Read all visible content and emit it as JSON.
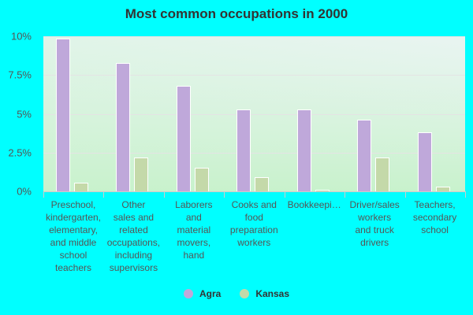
{
  "chart_data": {
    "type": "bar",
    "title": "Most common occupations in 2000",
    "xlabel": "",
    "ylabel": "",
    "ylim": [
      0,
      10
    ],
    "yticks": [
      "0%",
      "2.5%",
      "5%",
      "7.5%",
      "10%"
    ],
    "grid": true,
    "legend_position": "bottom",
    "categories": [
      "Preschool, kindergarten, elementary, and middle school teachers",
      "Other sales and related occupations, including supervisors",
      "Laborers and material movers, hand",
      "Cooks and food preparation workers",
      "Bookkeepi...",
      "Driver/sales workers and truck drivers",
      "Teachers, secondary school"
    ],
    "series": [
      {
        "name": "Agra",
        "color": "#bfa8da",
        "values": [
          9.85,
          8.3,
          6.8,
          5.3,
          5.3,
          4.6,
          3.8
        ]
      },
      {
        "name": "Kansas",
        "color": "#c4d9a9",
        "values": [
          0.55,
          2.2,
          1.5,
          0.9,
          0.1,
          2.2,
          0.3
        ]
      }
    ]
  },
  "labels": {
    "title": "Most common occupations in 2000",
    "yticks": [
      "0%",
      "2.5%",
      "5%",
      "7.5%",
      "10%"
    ],
    "x": [
      "Preschool,\nkindergarten,\nelementary,\nand middle\nschool\nteachers",
      "Other\nsales and\nrelated\noccupations,\nincluding\nsupervisors",
      "Laborers\nand\nmaterial\nmovers,\nhand",
      "Cooks and\nfood\npreparation\nworkers",
      "Bookkeepi…",
      "Driver/sales\nworkers\nand truck\ndrivers",
      "Teachers,\nsecondary\nschool"
    ],
    "legend": [
      "Agra",
      "Kansas"
    ]
  }
}
